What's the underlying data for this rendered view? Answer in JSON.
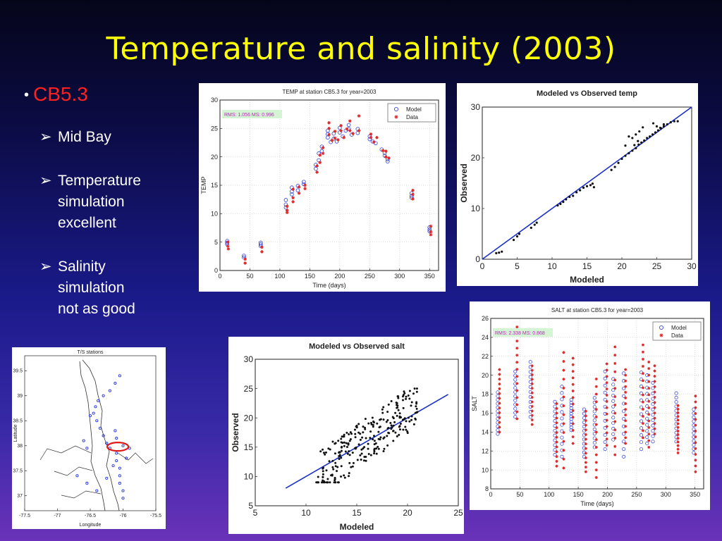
{
  "slide": {
    "title": "Temperature and salinity (2003)",
    "bullet": "CB5.3",
    "bullet_color": "#ff2020",
    "title_color": "#ffff00",
    "sub_items": [
      [
        "Mid Bay"
      ],
      [
        "Temperature",
        "simulation",
        "excellent"
      ],
      [
        "Salinity",
        "simulation",
        "not as good"
      ]
    ]
  },
  "chart_data": [
    {
      "id": "temp-ts",
      "type": "scatter",
      "title": "TEMP at station  CB5.3 for year=2003",
      "xlabel": "Time (days)",
      "ylabel": "TEMP",
      "xlim": [
        0,
        365
      ],
      "ylim": [
        0,
        30
      ],
      "xticks": [
        0,
        50,
        100,
        150,
        200,
        250,
        300,
        350
      ],
      "yticks": [
        0,
        5,
        10,
        15,
        20,
        25,
        30
      ],
      "grid": true,
      "legend": "top-right",
      "legend_entries": [
        "Model",
        "Data"
      ],
      "annotation": "RMS: 1.056 MS: 0.996",
      "series": [
        {
          "name": "Model",
          "marker": "circle",
          "color": "#2a3ad8",
          "points": [
            [
              12,
              5.2
            ],
            [
              12,
              4.9
            ],
            [
              12,
              4.6
            ],
            [
              40,
              2.6
            ],
            [
              40,
              2.3
            ],
            [
              68,
              4.9
            ],
            [
              68,
              4.6
            ],
            [
              68,
              4.3
            ],
            [
              110,
              12.4
            ],
            [
              110,
              11.6
            ],
            [
              110,
              11.1
            ],
            [
              120,
              14.6
            ],
            [
              120,
              13.9
            ],
            [
              120,
              13.4
            ],
            [
              130,
              14.9
            ],
            [
              130,
              14.1
            ],
            [
              140,
              15.6
            ],
            [
              140,
              15.2
            ],
            [
              160,
              18.6
            ],
            [
              160,
              17.9
            ],
            [
              165,
              20.6
            ],
            [
              165,
              19.4
            ],
            [
              170,
              21.8
            ],
            [
              170,
              21.0
            ],
            [
              180,
              24.6
            ],
            [
              180,
              24.0
            ],
            [
              180,
              23.4
            ],
            [
              185,
              22.6
            ],
            [
              190,
              24.1
            ],
            [
              190,
              23.2
            ],
            [
              195,
              22.7
            ],
            [
              200,
              25.1
            ],
            [
              200,
              24.3
            ],
            [
              205,
              23.6
            ],
            [
              210,
              24.6
            ],
            [
              215,
              25.6
            ],
            [
              215,
              24.9
            ],
            [
              220,
              23.9
            ],
            [
              230,
              24.9
            ],
            [
              230,
              24.2
            ],
            [
              250,
              23.6
            ],
            [
              250,
              23.1
            ],
            [
              255,
              22.7
            ],
            [
              260,
              22.4
            ],
            [
              270,
              21.3
            ],
            [
              275,
              20.7
            ],
            [
              275,
              20.2
            ],
            [
              280,
              19.6
            ],
            [
              280,
              19.2
            ],
            [
              320,
              13.6
            ],
            [
              320,
              13.1
            ],
            [
              320,
              12.8
            ],
            [
              350,
              7.6
            ],
            [
              350,
              7.2
            ],
            [
              350,
              6.9
            ]
          ]
        },
        {
          "name": "Data",
          "marker": "star",
          "color": "#e02828",
          "points": [
            [
              13,
              5.0
            ],
            [
              13,
              4.3
            ],
            [
              14,
              3.8
            ],
            [
              42,
              2.0
            ],
            [
              42,
              1.3
            ],
            [
              70,
              4.1
            ],
            [
              70,
              3.3
            ],
            [
              112,
              11.3
            ],
            [
              112,
              10.6
            ],
            [
              112,
              10.2
            ],
            [
              122,
              14.3
            ],
            [
              122,
              12.8
            ],
            [
              122,
              12.1
            ],
            [
              132,
              14.7
            ],
            [
              132,
              13.6
            ],
            [
              142,
              15.0
            ],
            [
              142,
              14.4
            ],
            [
              162,
              18.4
            ],
            [
              162,
              17.3
            ],
            [
              167,
              20.3
            ],
            [
              167,
              19.0
            ],
            [
              172,
              21.6
            ],
            [
              172,
              20.6
            ],
            [
              182,
              26.0
            ],
            [
              182,
              25.0
            ],
            [
              182,
              23.9
            ],
            [
              187,
              22.9
            ],
            [
              192,
              24.5
            ],
            [
              192,
              23.3
            ],
            [
              197,
              23.0
            ],
            [
              202,
              25.5
            ],
            [
              202,
              24.6
            ],
            [
              207,
              23.4
            ],
            [
              212,
              24.9
            ],
            [
              217,
              26.3
            ],
            [
              217,
              24.6
            ],
            [
              222,
              24.1
            ],
            [
              232,
              27.2
            ],
            [
              232,
              24.6
            ],
            [
              252,
              24.0
            ],
            [
              252,
              23.4
            ],
            [
              257,
              22.6
            ],
            [
              262,
              23.4
            ],
            [
              272,
              21.1
            ],
            [
              277,
              21.0
            ],
            [
              277,
              20.0
            ],
            [
              282,
              19.8
            ],
            [
              322,
              14.1
            ],
            [
              322,
              13.4
            ],
            [
              322,
              12.6
            ],
            [
              352,
              7.8
            ],
            [
              352,
              6.8
            ],
            [
              352,
              6.3
            ]
          ]
        }
      ]
    },
    {
      "id": "temp-mvo",
      "type": "scatter",
      "title": "Modeled vs Observed temp",
      "xlabel": "Modeled",
      "ylabel": "Observed",
      "xlim": [
        0,
        30
      ],
      "ylim": [
        0,
        30
      ],
      "xticks": [
        0,
        5,
        10,
        15,
        20,
        25,
        30
      ],
      "yticks": [
        0,
        10,
        20,
        30
      ],
      "grid": false,
      "fit_line": [
        [
          0,
          0
        ],
        [
          30,
          30
        ]
      ],
      "points": [
        [
          2.0,
          1.2
        ],
        [
          2.4,
          1.3
        ],
        [
          2.8,
          1.5
        ],
        [
          4.5,
          3.8
        ],
        [
          5.0,
          4.5
        ],
        [
          5.3,
          5.0
        ],
        [
          7.0,
          6.2
        ],
        [
          7.5,
          6.8
        ],
        [
          7.8,
          7.2
        ],
        [
          10.8,
          10.6
        ],
        [
          11.2,
          10.9
        ],
        [
          11.6,
          11.3
        ],
        [
          12.0,
          11.8
        ],
        [
          12.5,
          12.3
        ],
        [
          13.0,
          12.5
        ],
        [
          13.5,
          13.2
        ],
        [
          14.0,
          13.6
        ],
        [
          14.5,
          14.1
        ],
        [
          15.0,
          14.4
        ],
        [
          15.5,
          14.6
        ],
        [
          15.8,
          14.9
        ],
        [
          16.0,
          14.2
        ],
        [
          18.5,
          17.6
        ],
        [
          19.0,
          18.2
        ],
        [
          19.5,
          19.0
        ],
        [
          20.0,
          19.8
        ],
        [
          20.5,
          20.4
        ],
        [
          21.0,
          20.9
        ],
        [
          21.5,
          21.4
        ],
        [
          22.0,
          21.9
        ],
        [
          22.4,
          22.6
        ],
        [
          22.8,
          23.0
        ],
        [
          23.2,
          23.4
        ],
        [
          23.6,
          23.9
        ],
        [
          24.0,
          24.2
        ],
        [
          24.4,
          24.6
        ],
        [
          24.8,
          25.0
        ],
        [
          25.2,
          25.4
        ],
        [
          25.6,
          25.8
        ],
        [
          26.0,
          26.2
        ],
        [
          26.5,
          26.6
        ],
        [
          27.0,
          27.0
        ],
        [
          27.5,
          27.2
        ],
        [
          28.0,
          27.2
        ],
        [
          24.5,
          26.8
        ],
        [
          25.0,
          26.2
        ],
        [
          25.5,
          25.9
        ],
        [
          26.0,
          26.6
        ],
        [
          23.0,
          26.0
        ],
        [
          22.5,
          25.2
        ],
        [
          22.0,
          24.6
        ],
        [
          21.5,
          23.9
        ],
        [
          21.0,
          24.2
        ],
        [
          20.5,
          22.4
        ],
        [
          21.8,
          22.5
        ],
        [
          22.3,
          23.3
        ]
      ]
    },
    {
      "id": "map",
      "type": "scatter",
      "title": "T/S stations",
      "xlabel": "Longitude",
      "ylabel": "Latitude",
      "xlim": [
        -77.5,
        -75.5
      ],
      "ylim": [
        36.7,
        39.8
      ],
      "xticks": [
        -77.5,
        -77,
        -76.5,
        -76,
        -75.5
      ],
      "yticks": [
        37,
        37.5,
        38,
        38.5,
        39,
        39.5
      ],
      "points": [
        [
          -76.05,
          39.4
        ],
        [
          -76.12,
          39.25
        ],
        [
          -76.2,
          39.1
        ],
        [
          -76.3,
          39.0
        ],
        [
          -76.38,
          38.9
        ],
        [
          -76.42,
          38.78
        ],
        [
          -76.45,
          38.65
        ],
        [
          -76.4,
          38.5
        ],
        [
          -76.35,
          38.35
        ],
        [
          -76.3,
          38.2
        ],
        [
          -76.25,
          38.05
        ],
        [
          -76.2,
          37.95
        ],
        [
          -76.1,
          37.85
        ],
        [
          -76.1,
          37.7
        ],
        [
          -76.05,
          37.55
        ],
        [
          -76.05,
          37.4
        ],
        [
          -76.05,
          37.25
        ],
        [
          -76.0,
          37.1
        ],
        [
          -76.0,
          36.95
        ],
        [
          -76.12,
          38.3
        ],
        [
          -76.1,
          38.15
        ],
        [
          -76.0,
          38.0
        ],
        [
          -76.15,
          37.6
        ],
        [
          -76.25,
          37.35
        ],
        [
          -76.4,
          37.1
        ],
        [
          -76.55,
          37.25
        ],
        [
          -76.7,
          37.4
        ],
        [
          -75.95,
          37.75
        ],
        [
          -75.9,
          37.95
        ],
        [
          -76.5,
          38.6
        ],
        [
          -76.6,
          38.1
        ],
        [
          -76.55,
          37.95
        ]
      ],
      "highlight": {
        "center": [
          -76.08,
          37.98
        ],
        "color": "#e01818"
      }
    },
    {
      "id": "salt-mvo",
      "type": "scatter",
      "title": "Modeled vs Observed salt",
      "xlabel": "Modeled",
      "ylabel": "Observed",
      "xlim": [
        5,
        25
      ],
      "ylim": [
        5,
        30
      ],
      "xticks": [
        5,
        10,
        15,
        20,
        25
      ],
      "yticks": [
        5,
        10,
        15,
        20,
        25,
        30
      ],
      "grid": false,
      "fit_line": [
        [
          8,
          8
        ],
        [
          24,
          24
        ]
      ]
    },
    {
      "id": "salt-ts",
      "type": "scatter",
      "title": "SALT at station  CB5.3 for year=2003",
      "xlabel": "Time (days)",
      "ylabel": "SALT",
      "xlim": [
        0,
        365
      ],
      "ylim": [
        8,
        26
      ],
      "xticks": [
        0,
        50,
        100,
        150,
        200,
        250,
        300,
        350
      ],
      "yticks": [
        8,
        10,
        12,
        14,
        16,
        18,
        20,
        22,
        24,
        26
      ],
      "grid": true,
      "legend": "top-right",
      "legend_entries": [
        "Model",
        "Data"
      ],
      "annotation": "RMS: 2.338 MS: 0.868",
      "stations_days": [
        12,
        42,
        68,
        110,
        122,
        138,
        160,
        178,
        196,
        210,
        228,
        258,
        268,
        278,
        318,
        348
      ],
      "model_ranges": [
        [
          13.8,
          18.2
        ],
        [
          15.6,
          20.4
        ],
        [
          15.6,
          21.4
        ],
        [
          11.6,
          17.2
        ],
        [
          11.4,
          18.8
        ],
        [
          14.2,
          17.4
        ],
        [
          11.4,
          16.4
        ],
        [
          12.4,
          17.6
        ],
        [
          12.2,
          20.4
        ],
        [
          13.2,
          19.6
        ],
        [
          11.4,
          20.2
        ],
        [
          12.2,
          20.3
        ],
        [
          12.8,
          20.0
        ],
        [
          13.0,
          19.2
        ],
        [
          13.0,
          18.1
        ],
        [
          11.8,
          16.4
        ]
      ],
      "data_ranges": [
        [
          14.0,
          20.6
        ],
        [
          15.4,
          25.1
        ],
        [
          14.8,
          21.0
        ],
        [
          10.4,
          17.0
        ],
        [
          10.2,
          22.4
        ],
        [
          12.8,
          21.8
        ],
        [
          9.8,
          16.2
        ],
        [
          9.2,
          19.6
        ],
        [
          12.6,
          21.2
        ],
        [
          11.6,
          23.0
        ],
        [
          12.8,
          20.6
        ],
        [
          13.4,
          23.2
        ],
        [
          12.4,
          21.4
        ],
        [
          13.8,
          21.0
        ],
        [
          11.8,
          16.8
        ],
        [
          9.8,
          17.8
        ]
      ]
    }
  ]
}
